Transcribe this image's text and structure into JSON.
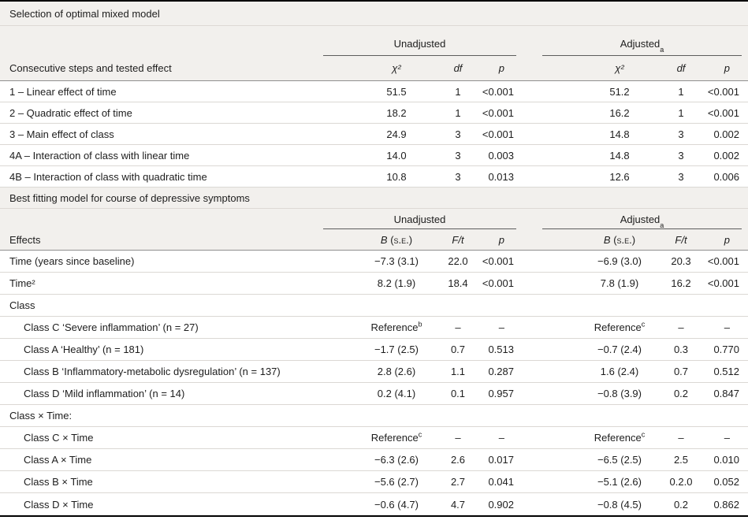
{
  "table": {
    "section1": {
      "title": "Selection of optimal mixed model",
      "unadjusted_label": "Unadjusted",
      "adjusted_label": "Adjusted",
      "adjusted_sup": "a",
      "header": {
        "label": "Consecutive steps and tested effect",
        "u1": "χ²",
        "u2": "df",
        "u3": "p",
        "a1": "χ²",
        "a2": "df",
        "a3": "p"
      },
      "rows": [
        {
          "label": "1 – Linear effect of time",
          "u1": "51.5",
          "u2": "1",
          "u3": "<0.001",
          "a1": "51.2",
          "a2": "1",
          "a3": "<0.001"
        },
        {
          "label": "2 – Quadratic effect of time",
          "u1": "18.2",
          "u2": "1",
          "u3": "<0.001",
          "a1": "16.2",
          "a2": "1",
          "a3": "<0.001"
        },
        {
          "label": "3 – Main effect of class",
          "u1": "24.9",
          "u2": "3",
          "u3": "<0.001",
          "a1": "14.8",
          "a2": "3",
          "a3": "0.002"
        },
        {
          "label": "4A – Interaction of class with linear time",
          "u1": "14.0",
          "u2": "3",
          "u3": "0.003",
          "a1": "14.8",
          "a2": "3",
          "a3": "0.002"
        },
        {
          "label": "4B – Interaction of class with quadratic time",
          "u1": "10.8",
          "u2": "3",
          "u3": "0.013",
          "a1": "12.6",
          "a2": "3",
          "a3": "0.006"
        }
      ]
    },
    "section2": {
      "title": "Best fitting model for course of depressive symptoms",
      "unadjusted_label": "Unadjusted",
      "adjusted_label": "Adjusted",
      "adjusted_sup": "a",
      "header": {
        "label": "Effects",
        "b_label": "B",
        "se_label": "(s.e.)",
        "ft_label": "F/t",
        "p_label": "p"
      },
      "rows": [
        {
          "label": "Time (years since baseline)",
          "u1": "−7.3 (3.1)",
          "u2": "22.0",
          "u3": "<0.001",
          "a1": "−6.9 (3.0)",
          "a2": "20.3",
          "a3": "<0.001"
        },
        {
          "label": "Time²",
          "u1": "8.2 (1.9)",
          "u2": "18.4",
          "u3": "<0.001",
          "a1": "7.8 (1.9)",
          "a2": "16.2",
          "a3": "<0.001"
        },
        {
          "label": "Class"
        },
        {
          "label": "Class C ‘Severe inflammation’ (n = 27)",
          "u1": "Reference",
          "u1_sup": "b",
          "u2": "–",
          "u3": "–",
          "a1": "Reference",
          "a1_sup": "c",
          "a2": "–",
          "a3": "–"
        },
        {
          "label": "Class A ‘Healthy’ (n = 181)",
          "u1": "−1.7 (2.5)",
          "u2": "0.7",
          "u3": "0.513",
          "a1": "−0.7 (2.4)",
          "a2": "0.3",
          "a3": "0.770"
        },
        {
          "label": "Class B ‘Inflammatory-metabolic dysregulation’ (n = 137)",
          "u1": "2.8 (2.6)",
          "u2": "1.1",
          "u3": "0.287",
          "a1": "1.6 (2.4)",
          "a2": "0.7",
          "a3": "0.512"
        },
        {
          "label": "Class D ‘Mild inflammation’ (n = 14)",
          "u1": "0.2 (4.1)",
          "u2": "0.1",
          "u3": "0.957",
          "a1": "−0.8 (3.9)",
          "a2": "0.2",
          "a3": "0.847"
        },
        {
          "label": "Class × Time:"
        },
        {
          "label": "Class C × Time",
          "u1": "Reference",
          "u1_sup": "c",
          "u2": "–",
          "u3": "–",
          "a1": "Reference",
          "a1_sup": "c",
          "a2": "–",
          "a3": "–"
        },
        {
          "label": "Class A × Time",
          "u1": "−6.3 (2.6)",
          "u2": "2.6",
          "u3": "0.017",
          "a1": "−6.5 (2.5)",
          "a2": "2.5",
          "a3": "0.010"
        },
        {
          "label": "Class B × Time",
          "u1": "−5.6 (2.7)",
          "u2": "2.7",
          "u3": "0.041",
          "a1": "−5.1 (2.6)",
          "a2": "0.2.0",
          "a3": "0.052"
        },
        {
          "label": "Class D × Time",
          "u1": "−0.6 (4.7)",
          "u2": "4.7",
          "u3": "0.902",
          "a1": "−0.8 (4.5)",
          "a2": "0.2",
          "a3": "0.862"
        }
      ]
    }
  }
}
